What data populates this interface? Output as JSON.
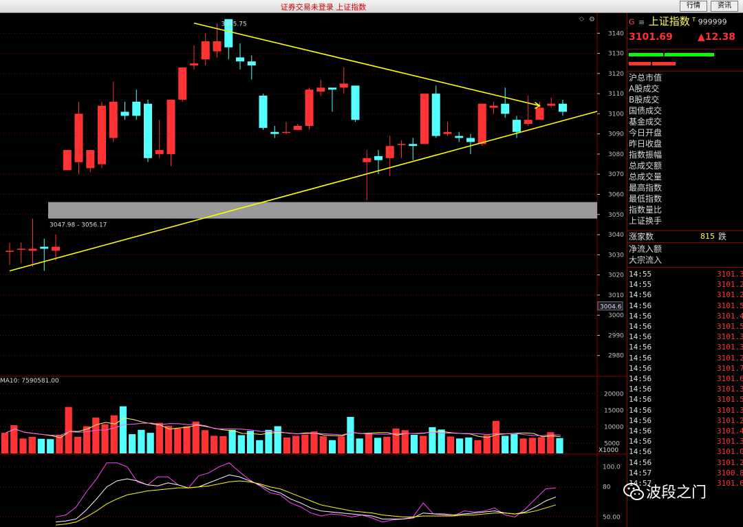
{
  "window": {
    "title": "证券交易未登录  上证指数",
    "buttons": [
      "行情",
      "资讯"
    ]
  },
  "header": {
    "prefix": "G",
    "icon": "menu-icon",
    "name": "上证指数",
    "mark": "T",
    "code": "999999",
    "price": "3101.69",
    "change": "▲12.38"
  },
  "quote_labels": [
    "沪总市值",
    "A股成交",
    "B股成交",
    "国债成交",
    "基金成交",
    "今日开盘",
    "昨日收盘",
    "指数振幅",
    "总成交额",
    "总成交量",
    "最高指数",
    "最低指数",
    "指数量比",
    "上证换手"
  ],
  "breadth": {
    "label": "涨家数",
    "value": "815",
    "suffix": "跌"
  },
  "flow_labels": [
    "净流入额",
    "大宗流入"
  ],
  "ticks": [
    {
      "time": "14:55",
      "price": "3101.3"
    },
    {
      "time": "14:55",
      "price": "3101.2"
    },
    {
      "time": "14:56",
      "price": "3101.2"
    },
    {
      "time": "14:56",
      "price": "3101.5"
    },
    {
      "time": "14:56",
      "price": "3101.4"
    },
    {
      "time": "14:56",
      "price": "3101.5"
    },
    {
      "time": "14:56",
      "price": "3101.3"
    },
    {
      "time": "14:56",
      "price": "3101.3"
    },
    {
      "time": "14:56",
      "price": "3101.2"
    },
    {
      "time": "14:56",
      "price": "3101.7"
    },
    {
      "time": "14:56",
      "price": "3101.6"
    },
    {
      "time": "14:56",
      "price": "3101.3"
    },
    {
      "time": "14:56",
      "price": "3101.5"
    },
    {
      "time": "14:56",
      "price": "3101.3"
    },
    {
      "time": "14:56",
      "price": "3101.2"
    },
    {
      "time": "14:56",
      "price": "3101.4"
    },
    {
      "time": "14:56",
      "price": "3101.3"
    },
    {
      "time": "14:56",
      "price": "3101.0"
    },
    {
      "time": "14:56",
      "price": "3101.2"
    },
    {
      "time": "14:57",
      "price": "3100.8"
    },
    {
      "time": "14:57",
      "price": "3101.6"
    }
  ],
  "watermark": {
    "icon": "wechat-icon",
    "text": "波段之门"
  },
  "colors": {
    "up": "#ff3333",
    "down": "#54ffff",
    "trend": "#ffff00",
    "grid": "#8b0000",
    "axis": "#c0c0c0"
  },
  "chart_data": [
    {
      "type": "candlestick",
      "ylim": [
        2970,
        3150
      ],
      "y_ticks": [
        2980,
        2990,
        3000,
        3010,
        3020,
        3030,
        3040,
        3050,
        3060,
        3070,
        3080,
        3090,
        3100,
        3110,
        3120,
        3130,
        3140
      ],
      "cursor_label": "3004.6",
      "annotations": {
        "high_label": "3145.75",
        "zone_label": "3047.98 - 3056.17"
      },
      "zone": {
        "low": 3047.98,
        "high": 3056.17
      },
      "trendlines": [
        {
          "from": [
            0,
            3022
          ],
          "to": [
            47,
            3095
          ]
        },
        {
          "from": [
            16,
            3145
          ],
          "to": [
            46,
            3104
          ]
        }
      ],
      "candles": [
        [
          3032,
          3032,
          3025,
          3036
        ],
        [
          3033,
          3033,
          3026,
          3036
        ],
        [
          3032,
          3033,
          3024,
          3048
        ],
        [
          3034,
          3033,
          3022,
          3038
        ],
        [
          3032,
          3034,
          3027,
          3040
        ],
        [
          3072,
          3082,
          3072,
          3082
        ],
        [
          3076,
          3100,
          3070,
          3106
        ],
        [
          3073,
          3082,
          3071,
          3082
        ],
        [
          3075,
          3104,
          3073,
          3106
        ],
        [
          3088,
          3106,
          3086,
          3116
        ],
        [
          3101,
          3099,
          3097,
          3106
        ],
        [
          3106,
          3099,
          3097,
          3112
        ],
        [
          3105,
          3078,
          3076,
          3107
        ],
        [
          3080,
          3082,
          3078,
          3097
        ],
        [
          3080,
          3107,
          3074,
          3107
        ],
        [
          3107,
          3123,
          3106,
          3123
        ],
        [
          3124,
          3125,
          3122,
          3134
        ],
        [
          3127,
          3136,
          3124,
          3140
        ],
        [
          3131,
          3136,
          3128,
          3145
        ],
        [
          3147,
          3133,
          3127,
          3147
        ],
        [
          3128,
          3126,
          3122,
          3135
        ],
        [
          3126,
          3124,
          3117,
          3129
        ],
        [
          3109,
          3093,
          3092,
          3110
        ],
        [
          3091,
          3090,
          3088,
          3094
        ],
        [
          3091,
          3091,
          3090,
          3096
        ],
        [
          3092,
          3094,
          3092,
          3095
        ],
        [
          3094,
          3112,
          3092,
          3113
        ],
        [
          3111,
          3113,
          3109,
          3117
        ],
        [
          3113,
          3112,
          3101,
          3113
        ],
        [
          3113,
          3115,
          3110,
          3123
        ],
        [
          3114,
          3097,
          3096,
          3114
        ],
        [
          3076,
          3078,
          3057,
          3082
        ],
        [
          3079,
          3077,
          3070,
          3082
        ],
        [
          3078,
          3084,
          3069,
          3089
        ],
        [
          3085,
          3085,
          3078,
          3087
        ],
        [
          3085,
          3084,
          3077,
          3088
        ],
        [
          3085,
          3110,
          3085,
          3110
        ],
        [
          3110,
          3089,
          3088,
          3114
        ],
        [
          3090,
          3091,
          3089,
          3096
        ],
        [
          3089,
          3088,
          3086,
          3091
        ],
        [
          3088,
          3086,
          3080,
          3090
        ],
        [
          3085,
          3105,
          3084,
          3105
        ],
        [
          3103,
          3104,
          3100,
          3106
        ],
        [
          3105,
          3100,
          3098,
          3113
        ],
        [
          3097,
          3091,
          3088,
          3099
        ],
        [
          3095,
          3097,
          3094,
          3109
        ],
        [
          3097,
          3103,
          3097,
          3106
        ],
        [
          3104,
          3105,
          3103,
          3108
        ],
        [
          3105,
          3101,
          3099,
          3107
        ]
      ]
    },
    {
      "type": "bar",
      "title": "MA10: 7590581.00",
      "ylim": [
        2000,
        24000
      ],
      "y_ticks": [
        5000,
        10000,
        15000,
        20000
      ],
      "unit_label": "X1000",
      "values": [
        8200,
        10500,
        6500,
        7000,
        6400,
        6300,
        7500,
        16000,
        7000,
        10200,
        12800,
        10800,
        13500,
        16200,
        7800,
        9100,
        8200,
        11200,
        10300,
        9500,
        10200,
        11600,
        9000,
        7300,
        7200,
        9100,
        7500,
        8800,
        6000,
        9100,
        10200,
        6800,
        7300,
        7600,
        8600,
        7200,
        6000,
        7100,
        13000,
        6500,
        8000,
        6700,
        7000,
        9500,
        9000,
        7600,
        7300,
        9900,
        9200,
        7100,
        6500,
        6800,
        6000,
        7500,
        11800,
        7300,
        7800,
        6500,
        6700,
        6900,
        8400,
        6600
      ]
    },
    {
      "type": "line",
      "y_ticks": [
        50,
        80,
        100
      ],
      "y_tick_labels": [
        "50.00",
        "80",
        "100.0"
      ],
      "ylim": [
        40,
        110
      ],
      "series": [
        {
          "color": "#ff44ff",
          "values": [
            50,
            52,
            60,
            75,
            88,
            104,
            104,
            100,
            85,
            82,
            90,
            90,
            82,
            79,
            91,
            94,
            100,
            104,
            95,
            87,
            81,
            74,
            72,
            64,
            60,
            54,
            51,
            53,
            52,
            50,
            52,
            49,
            45,
            47,
            48,
            50,
            64,
            53,
            52,
            51,
            56,
            55,
            56,
            59,
            52,
            50,
            58,
            68,
            78,
            79
          ]
        },
        {
          "color": "#ffffff",
          "values": [
            45,
            46,
            48,
            57,
            68,
            80,
            86,
            88,
            86,
            82,
            81,
            84,
            82,
            79,
            80,
            84,
            88,
            92,
            90,
            86,
            82,
            77,
            74,
            68,
            64,
            59,
            56,
            55,
            54,
            53,
            52,
            51,
            48,
            48,
            48,
            49,
            54,
            53,
            53,
            52,
            53,
            54,
            55,
            56,
            54,
            53,
            55,
            60,
            66,
            70
          ]
        },
        {
          "color": "#ffff00",
          "values": [
            42,
            43,
            45,
            50,
            56,
            63,
            68,
            72,
            74,
            76,
            77,
            78,
            79,
            79,
            80,
            81,
            83,
            85,
            86,
            85,
            83,
            80,
            78,
            74,
            70,
            66,
            62,
            60,
            58,
            56,
            55,
            54,
            52,
            51,
            50,
            50,
            51,
            51,
            51,
            51,
            52,
            52,
            53,
            54,
            54,
            53,
            54,
            56,
            59,
            62
          ]
        }
      ]
    }
  ]
}
